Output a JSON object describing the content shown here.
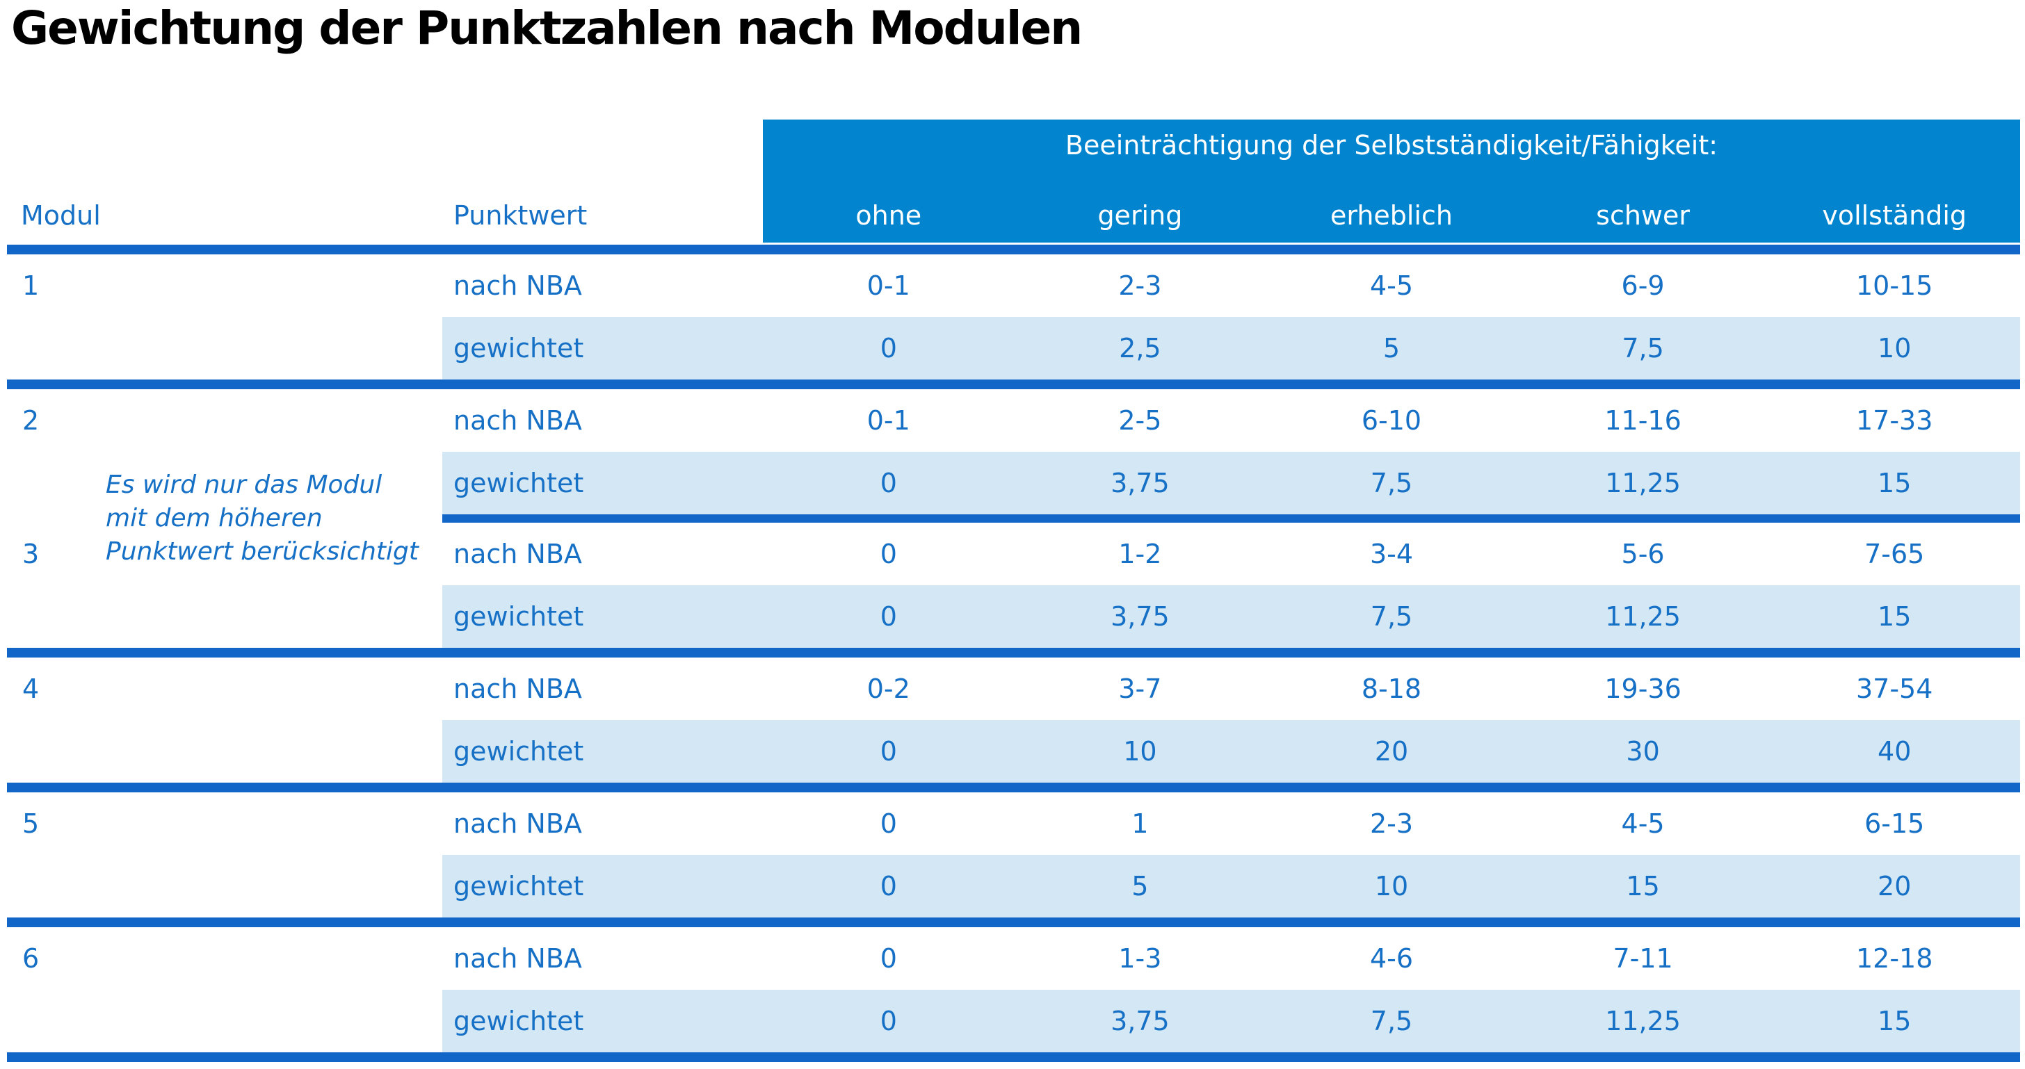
{
  "title": "Gewichtung der Punktzahlen nach Modulen",
  "table": {
    "col_headers": {
      "modul": "Modul",
      "punktwert": "Punktwert"
    },
    "band": {
      "title": "Beeinträchtigung der Selbstständigkeit/Fähigkeit:",
      "levels": [
        "ohne",
        "gering",
        "erheblich",
        "schwer",
        "vollständig"
      ]
    },
    "row_labels": {
      "nba": "nach NBA",
      "weighted": "gewichtet"
    },
    "note": [
      "Es wird nur das Modul",
      "mit dem höheren",
      "Punktwert berücksichtigt"
    ],
    "modules": [
      {
        "id": "1",
        "nba": [
          "0-1",
          "2-3",
          "4-5",
          "6-9",
          "10-15"
        ],
        "weighted": [
          "0",
          "2,5",
          "5",
          "7,5",
          "10"
        ]
      },
      {
        "id": "2",
        "nba": [
          "0-1",
          "2-5",
          "6-10",
          "11-16",
          "17-33"
        ],
        "weighted": [
          "0",
          "3,75",
          "7,5",
          "11,25",
          "15"
        ]
      },
      {
        "id": "3",
        "nba": [
          "0",
          "1-2",
          "3-4",
          "5-6",
          "7-65"
        ],
        "weighted": [
          "0",
          "3,75",
          "7,5",
          "11,25",
          "15"
        ]
      },
      {
        "id": "4",
        "nba": [
          "0-2",
          "3-7",
          "8-18",
          "19-36",
          "37-54"
        ],
        "weighted": [
          "0",
          "10",
          "20",
          "30",
          "40"
        ]
      },
      {
        "id": "5",
        "nba": [
          "0",
          "1",
          "2-3",
          "4-5",
          "6-15"
        ],
        "weighted": [
          "0",
          "5",
          "10",
          "15",
          "20"
        ]
      },
      {
        "id": "6",
        "nba": [
          "0",
          "1-3",
          "4-6",
          "7-11",
          "12-18"
        ],
        "weighted": [
          "0",
          "3,75",
          "7,5",
          "11,25",
          "15"
        ]
      }
    ]
  },
  "colors": {
    "band": "#0284CE",
    "rule": "#1266C8",
    "text_blue": "#1670C5",
    "row_light": "#D3E7F5",
    "band_text": "#FFFFFF",
    "title_text": "#000000"
  }
}
